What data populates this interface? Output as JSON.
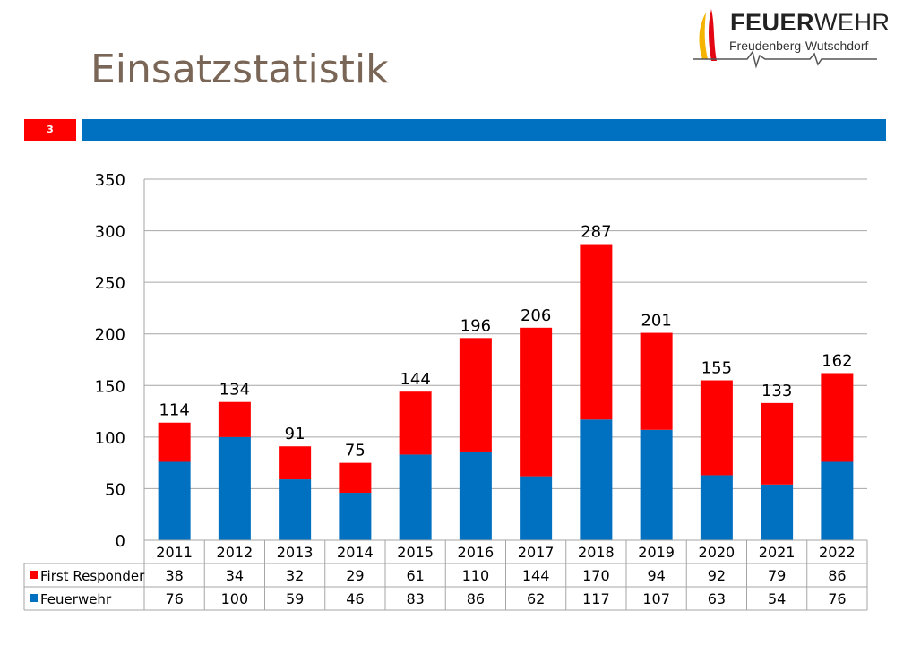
{
  "slide": {
    "title": "Einsatzstatistik",
    "number": "3"
  },
  "logo": {
    "title_bold": "FEUER",
    "title_light": "WEHR",
    "subtitle": "Freudenberg-Wutschdorf"
  },
  "colors": {
    "accent_blue": "#0070c0",
    "accent_red": "#ff0000",
    "title": "#7a6656"
  },
  "chart_data": {
    "type": "bar",
    "stacked": true,
    "categories": [
      "2011",
      "2012",
      "2013",
      "2014",
      "2015",
      "2016",
      "2017",
      "2018",
      "2019",
      "2020",
      "2021",
      "2022"
    ],
    "series": [
      {
        "name": "Feuerwehr",
        "color": "#0070c0",
        "values": [
          76,
          100,
          59,
          46,
          83,
          86,
          62,
          117,
          107,
          63,
          54,
          76
        ]
      },
      {
        "name": "First Responder",
        "color": "#ff0000",
        "values": [
          38,
          34,
          32,
          29,
          61,
          110,
          144,
          170,
          94,
          92,
          79,
          86
        ]
      }
    ],
    "totals": [
      114,
      134,
      91,
      75,
      144,
      196,
      206,
      287,
      201,
      155,
      133,
      162
    ],
    "ylim": [
      0,
      350
    ],
    "yticks": [
      0,
      50,
      100,
      150,
      200,
      250,
      300,
      350
    ],
    "grid": true,
    "legend": "data-table-below"
  }
}
